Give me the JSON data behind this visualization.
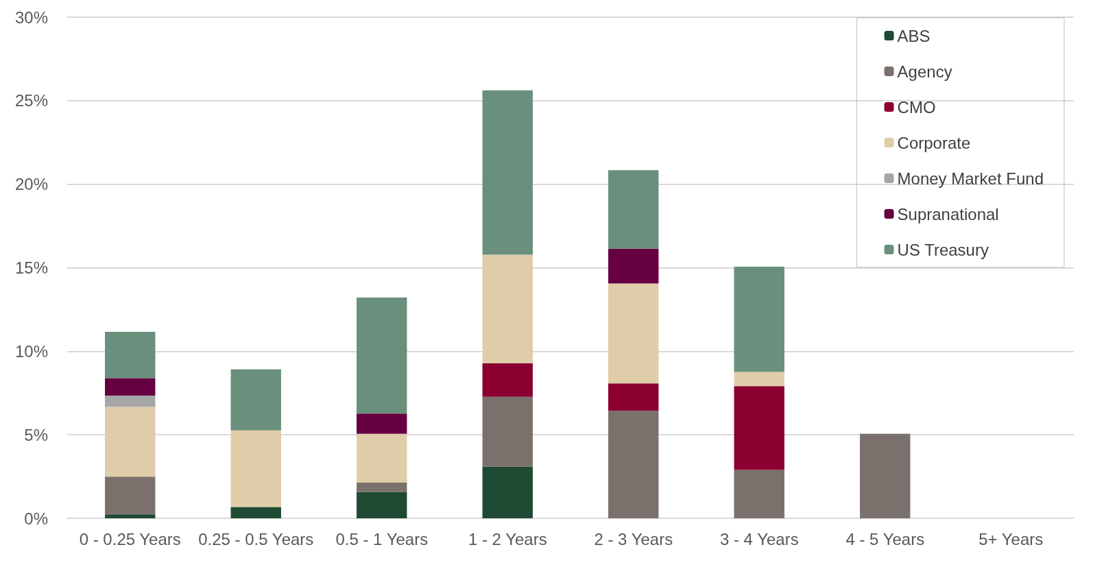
{
  "chart_data": {
    "type": "bar",
    "stacked": true,
    "categories": [
      "0 - 0.25 Years",
      "0.25 - 0.5 Years",
      "0.5 - 1 Years",
      "1 - 2 Years",
      "2 - 3 Years",
      "3 - 4 Years",
      "4 - 5 Years",
      "5+ Years"
    ],
    "series": [
      {
        "name": "ABS",
        "color": "#1f4a33",
        "values": [
          0.24,
          0.68,
          1.57,
          3.09,
          null,
          null,
          null,
          null
        ]
      },
      {
        "name": "Agency",
        "color": "#7b716c",
        "values": [
          2.25,
          null,
          0.56,
          4.18,
          6.43,
          2.89,
          5.06,
          null
        ]
      },
      {
        "name": "CMO",
        "color": "#8b0030",
        "values": [
          null,
          null,
          null,
          2.01,
          1.64,
          5.02,
          null,
          null
        ]
      },
      {
        "name": "Corporate",
        "color": "#dfcda9",
        "values": [
          4.18,
          4.58,
          2.93,
          6.5,
          5.99,
          0.85,
          null,
          null
        ]
      },
      {
        "name": "Money Market Fund",
        "color": "#a6a6a6",
        "values": [
          0.68,
          null,
          null,
          null,
          null,
          null,
          null,
          null
        ]
      },
      {
        "name": "Supranational",
        "color": "#660040",
        "values": [
          1.04,
          null,
          1.21,
          null,
          2.08,
          null,
          null,
          null
        ]
      },
      {
        "name": "US Treasury",
        "color": "#6a8f7c",
        "values": [
          2.77,
          3.66,
          6.94,
          9.84,
          4.7,
          6.3,
          null,
          null
        ]
      }
    ],
    "ylim": [
      0,
      30
    ],
    "yticks": [
      {
        "value": 0,
        "label": "0%"
      },
      {
        "value": 5,
        "label": "5%"
      },
      {
        "value": 10,
        "label": "10%"
      },
      {
        "value": 15,
        "label": "15%"
      },
      {
        "value": 20,
        "label": "20%"
      },
      {
        "value": 25,
        "label": "25%"
      },
      {
        "value": 30,
        "label": "30%"
      }
    ],
    "grid": "y",
    "legend": "top right"
  }
}
